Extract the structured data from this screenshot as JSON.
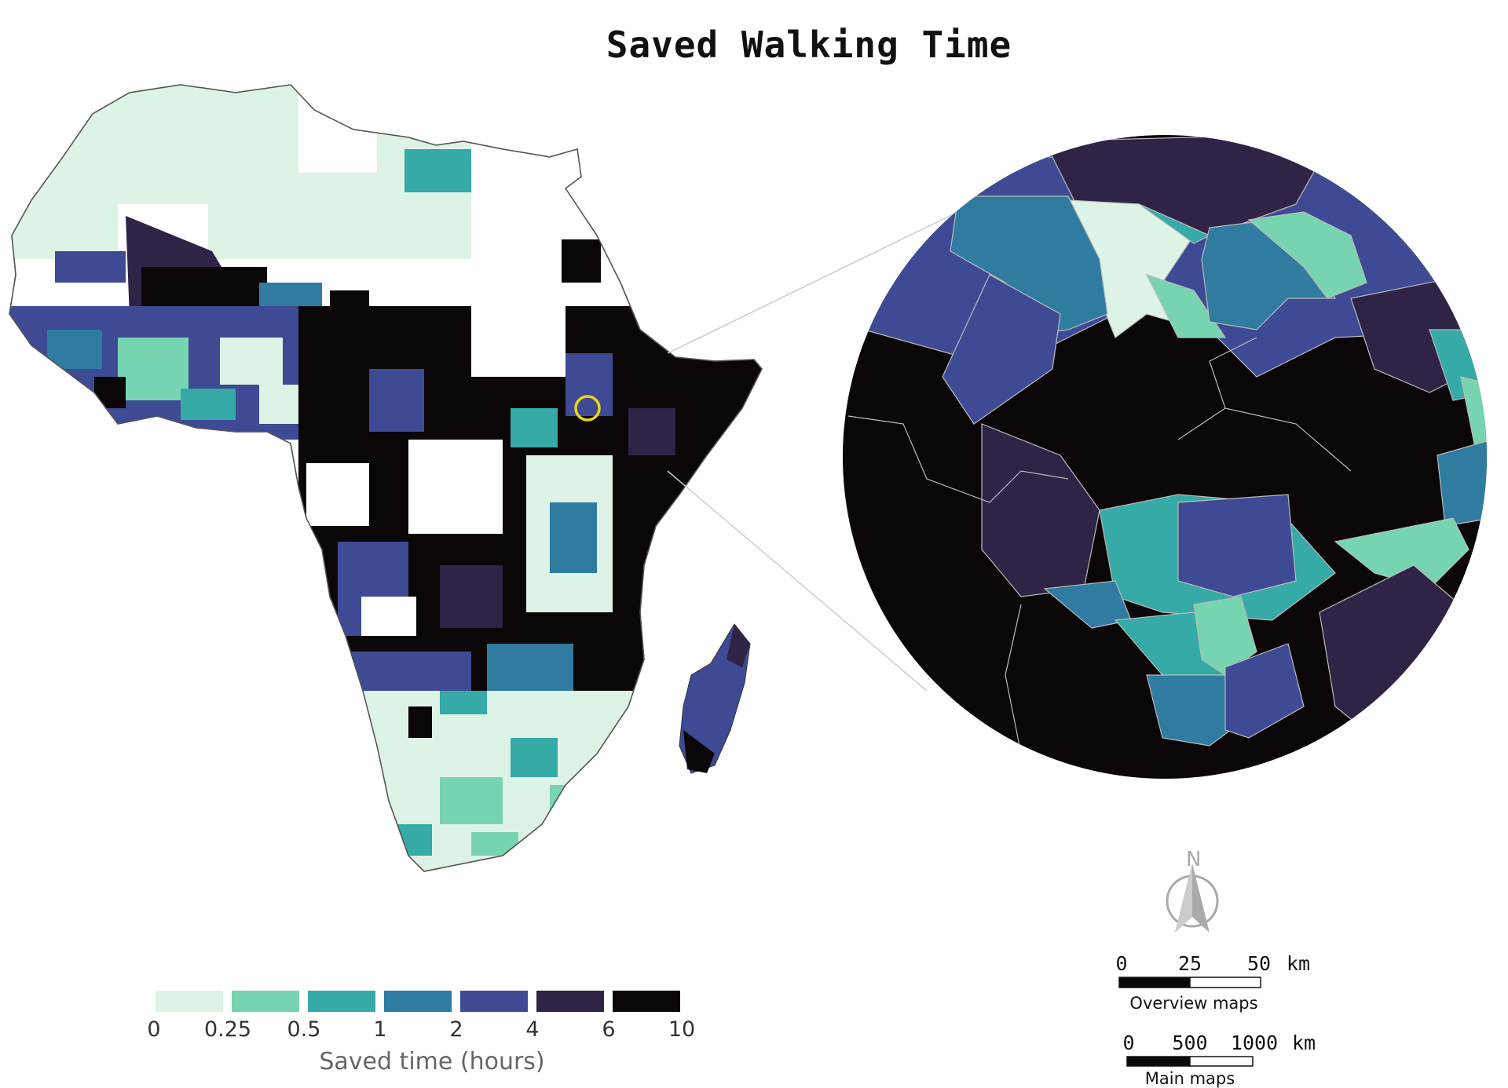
{
  "title": "Saved Walking Time",
  "legend": {
    "title": "Saved time (hours)",
    "breaks": [
      "0",
      "0.25",
      "0.5",
      "1",
      "2",
      "4",
      "6",
      "10"
    ],
    "colors": [
      "#ddf3e6",
      "#76d5b0",
      "#35aaa6",
      "#2f7ca0",
      "#3e4a93",
      "#2f2346",
      "#0b0709"
    ]
  },
  "north_arrow": {
    "label": "N"
  },
  "scale_bars": [
    {
      "ticks": [
        "0",
        "25",
        "50"
      ],
      "unit": "km",
      "caption": "Overview maps"
    },
    {
      "ticks": [
        "0",
        "500",
        "1000"
      ],
      "unit": "km",
      "caption": "Main maps"
    }
  ],
  "colors": {
    "highlight_circle": "#e5d619",
    "border": "#555555"
  }
}
